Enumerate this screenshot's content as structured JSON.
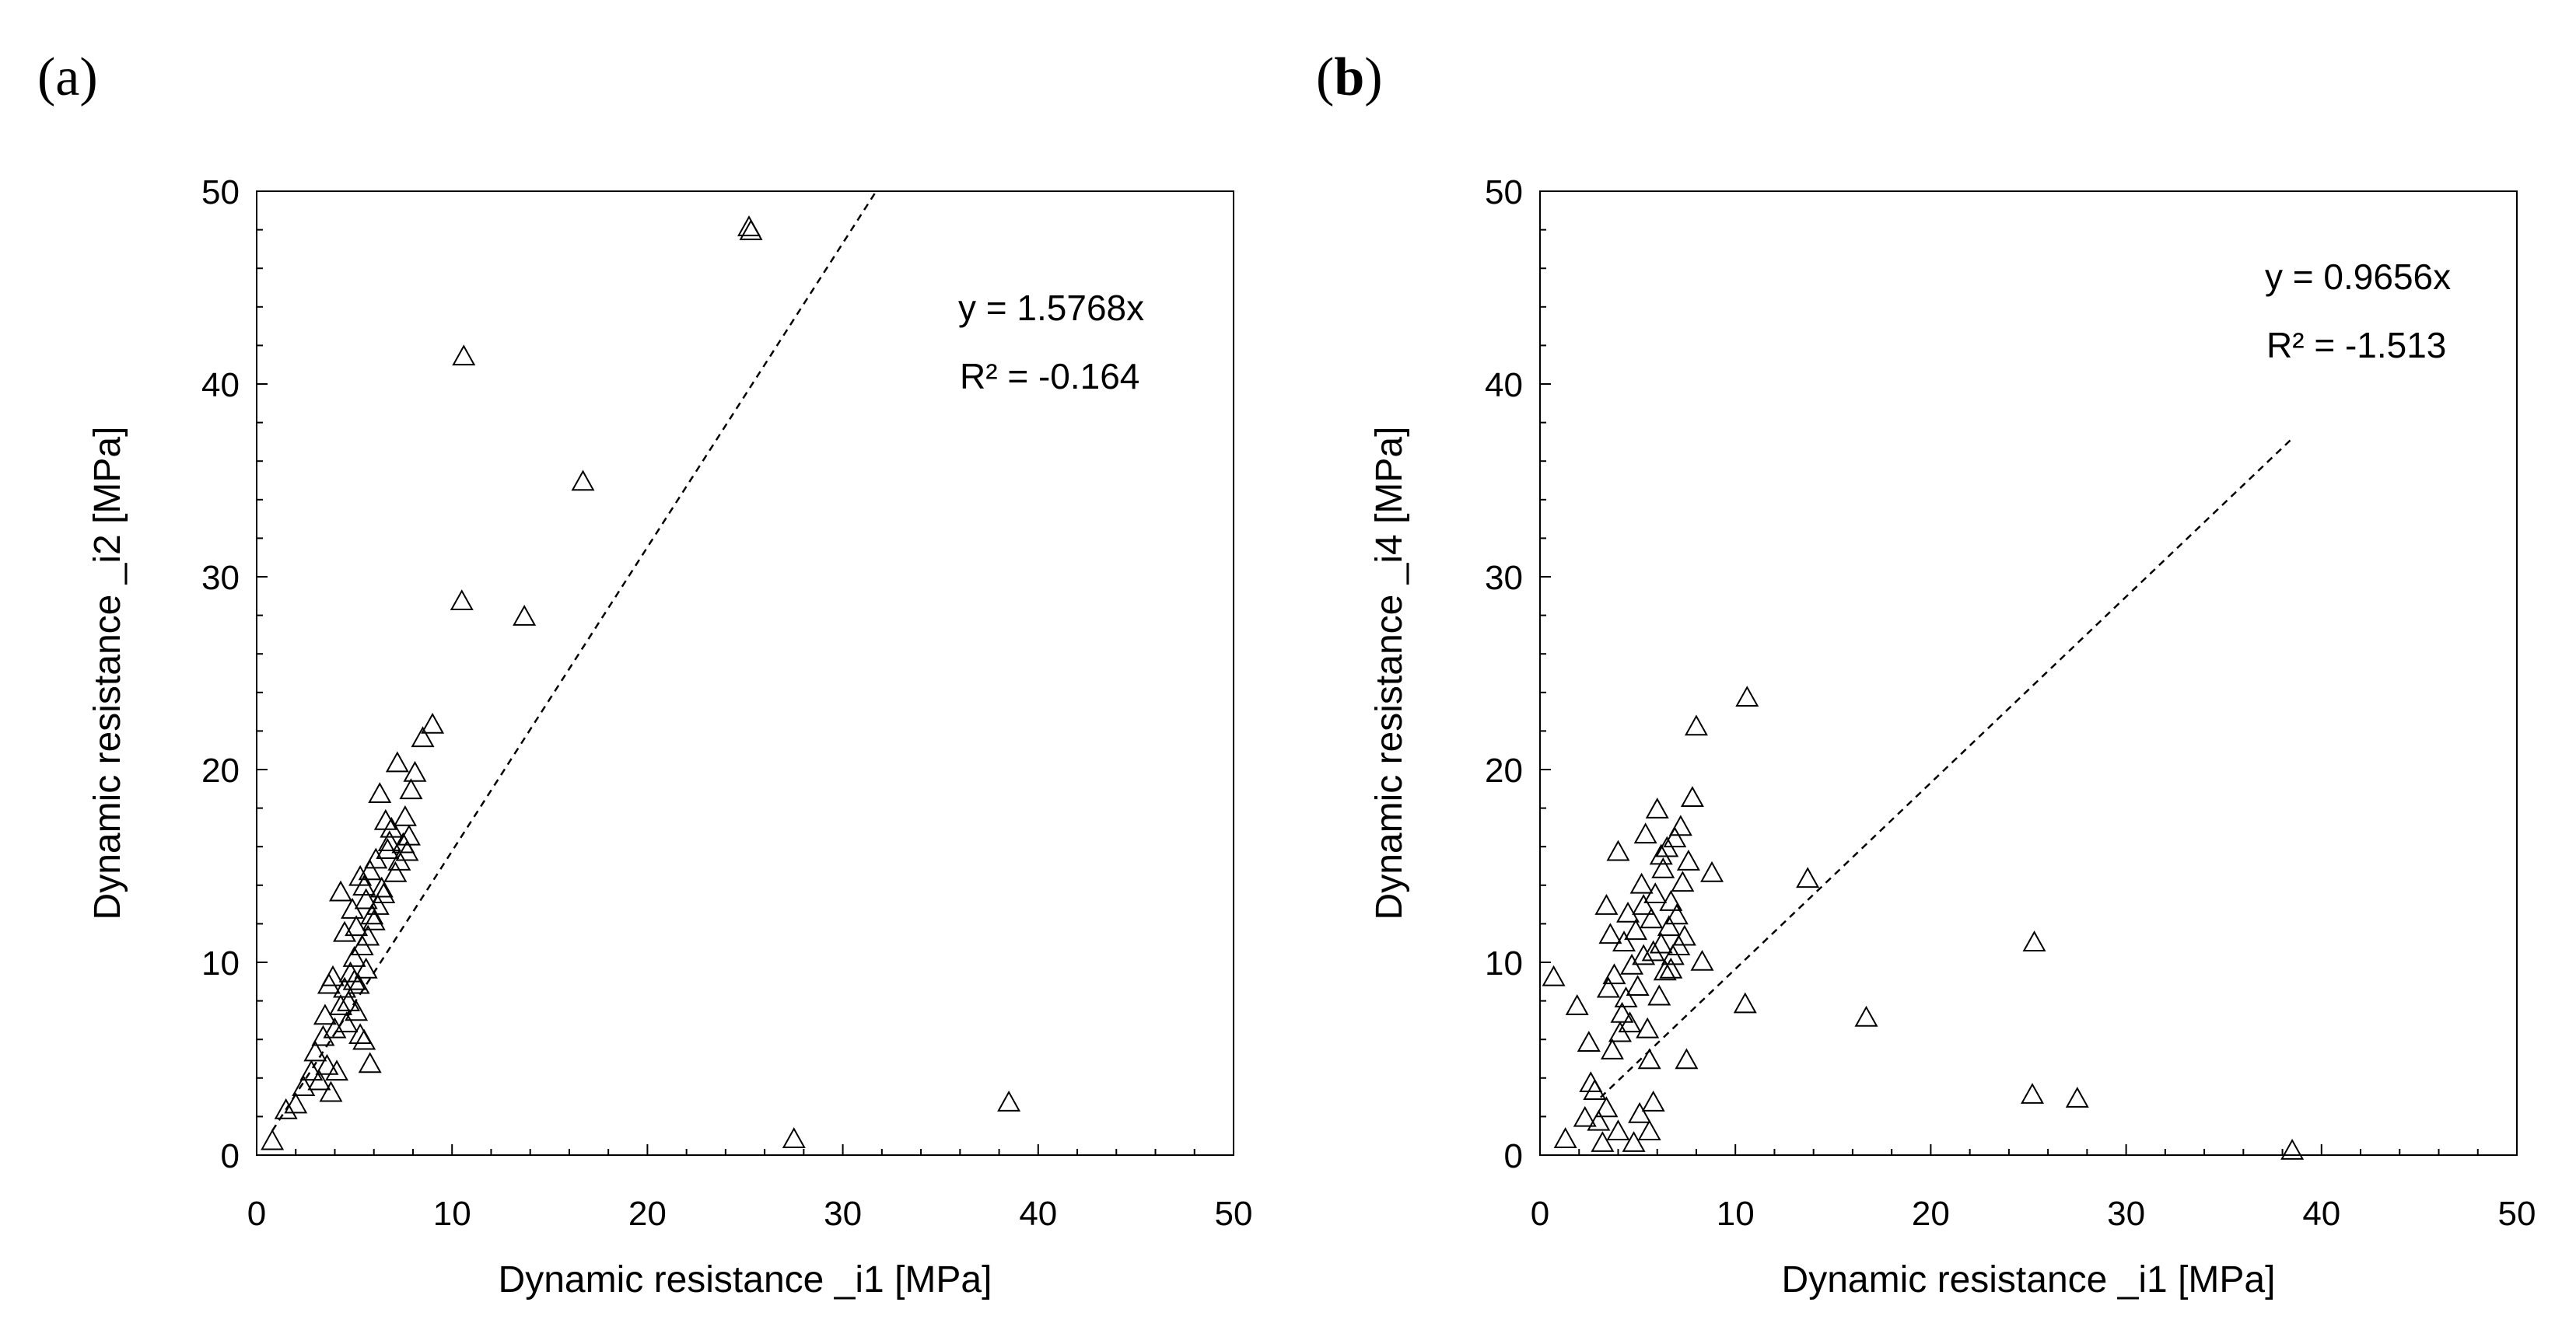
{
  "chart_data": [
    {
      "type": "scatter",
      "panel_label": "(a)",
      "xlabel": "Dynamic resistance _i1 [MPa]",
      "ylabel": "Dynamic resistance _i2 [MPa]",
      "xlim": [
        0,
        50
      ],
      "ylim": [
        0,
        50
      ],
      "xticks": [
        "0",
        "10",
        "20",
        "30",
        "40",
        "50"
      ],
      "yticks": [
        "0",
        "10",
        "20",
        "30",
        "40",
        "50"
      ],
      "marker": "open-triangle",
      "trendline": {
        "equation": "y = 1.5768x",
        "r2": "R² = -0.164",
        "slope": 1.5768,
        "x_range": [
          0.8,
          31.7
        ],
        "style": "dashed"
      },
      "points": [
        [
          0.8,
          0.7
        ],
        [
          1.5,
          2.3
        ],
        [
          2.0,
          2.6
        ],
        [
          2.4,
          3.5
        ],
        [
          2.8,
          4.3
        ],
        [
          3.0,
          5.3
        ],
        [
          3.2,
          3.8
        ],
        [
          3.4,
          6.1
        ],
        [
          3.6,
          4.6
        ],
        [
          3.8,
          3.2
        ],
        [
          3.5,
          7.2
        ],
        [
          3.7,
          8.8
        ],
        [
          4.0,
          6.5
        ],
        [
          4.1,
          4.3
        ],
        [
          4.3,
          7.7
        ],
        [
          4.5,
          8.6
        ],
        [
          4.6,
          6.8
        ],
        [
          4.8,
          9.4
        ],
        [
          5.0,
          10.2
        ],
        [
          5.1,
          7.4
        ],
        [
          5.3,
          6.2
        ],
        [
          5.5,
          5.9
        ],
        [
          5.2,
          8.8
        ],
        [
          5.4,
          10.8
        ],
        [
          5.6,
          9.6
        ],
        [
          5.7,
          11.3
        ],
        [
          5.8,
          4.7
        ],
        [
          6.0,
          12.1
        ],
        [
          4.3,
          13.6
        ],
        [
          4.9,
          12.7
        ],
        [
          5.1,
          11.8
        ],
        [
          5.3,
          14.4
        ],
        [
          5.6,
          13.2
        ],
        [
          5.8,
          14.7
        ],
        [
          6.1,
          15.3
        ],
        [
          6.2,
          12.9
        ],
        [
          6.4,
          13.8
        ],
        [
          6.3,
          18.7
        ],
        [
          6.6,
          17.3
        ],
        [
          6.7,
          15.8
        ],
        [
          6.9,
          16.9
        ],
        [
          7.1,
          14.6
        ],
        [
          7.2,
          20.3
        ],
        [
          7.3,
          15.2
        ],
        [
          7.5,
          16.1
        ],
        [
          7.6,
          17.5
        ],
        [
          7.7,
          15.7
        ],
        [
          7.8,
          16.5
        ],
        [
          7.9,
          18.9
        ],
        [
          8.1,
          19.8
        ],
        [
          8.5,
          21.6
        ],
        [
          9.0,
          22.3
        ],
        [
          10.5,
          28.7
        ],
        [
          10.6,
          41.4
        ],
        [
          13.7,
          27.9
        ],
        [
          16.7,
          34.9
        ],
        [
          25.2,
          48.1
        ],
        [
          25.3,
          47.9
        ],
        [
          27.5,
          0.8
        ],
        [
          38.5,
          2.7
        ],
        [
          4.5,
          11.5
        ],
        [
          5.0,
          9.0
        ],
        [
          3.9,
          9.2
        ],
        [
          6.5,
          13.5
        ],
        [
          5.9,
          12.4
        ],
        [
          4.7,
          7.9
        ],
        [
          5.5,
          13.9
        ],
        [
          6.8,
          16.2
        ]
      ]
    },
    {
      "type": "scatter",
      "panel_label": "(b)",
      "xlabel": "Dynamic resistance _i1 [MPa]",
      "ylabel": "Dynamic resistance _i4 [MPa]",
      "xlim": [
        0,
        50
      ],
      "ylim": [
        0,
        50
      ],
      "xticks": [
        "0",
        "10",
        "20",
        "30",
        "40",
        "50"
      ],
      "yticks": [
        "0",
        "10",
        "20",
        "30",
        "40",
        "50"
      ],
      "marker": "open-triangle",
      "trendline": {
        "equation": "y = 0.9656x",
        "r2": "R² = -1.513",
        "slope": 0.9656,
        "x_range": [
          3.1,
          38.5
        ],
        "style": "dashed"
      },
      "points": [
        [
          0.7,
          9.2
        ],
        [
          1.3,
          0.8
        ],
        [
          1.9,
          7.7
        ],
        [
          2.3,
          1.9
        ],
        [
          2.5,
          5.8
        ],
        [
          2.6,
          3.7
        ],
        [
          2.8,
          3.3
        ],
        [
          3.0,
          1.7
        ],
        [
          3.2,
          0.6
        ],
        [
          3.4,
          2.4
        ],
        [
          3.5,
          8.6
        ],
        [
          3.4,
          12.9
        ],
        [
          3.6,
          11.4
        ],
        [
          3.7,
          5.4
        ],
        [
          3.8,
          9.3
        ],
        [
          4.0,
          1.2
        ],
        [
          4.0,
          15.7
        ],
        [
          4.1,
          6.3
        ],
        [
          4.2,
          7.3
        ],
        [
          4.4,
          8.1
        ],
        [
          4.5,
          12.5
        ],
        [
          4.6,
          6.8
        ],
        [
          4.7,
          9.8
        ],
        [
          4.8,
          0.6
        ],
        [
          4.9,
          11.6
        ],
        [
          5.0,
          8.7
        ],
        [
          5.1,
          2.1
        ],
        [
          5.2,
          14.0
        ],
        [
          5.3,
          10.3
        ],
        [
          5.4,
          16.6
        ],
        [
          5.5,
          6.5
        ],
        [
          5.6,
          4.9
        ],
        [
          5.6,
          1.2
        ],
        [
          5.7,
          12.2
        ],
        [
          5.8,
          2.7
        ],
        [
          5.9,
          13.5
        ],
        [
          6.0,
          17.9
        ],
        [
          6.1,
          8.2
        ],
        [
          6.2,
          10.9
        ],
        [
          6.3,
          14.8
        ],
        [
          6.4,
          9.5
        ],
        [
          6.5,
          15.9
        ],
        [
          6.6,
          11.8
        ],
        [
          6.7,
          13.1
        ],
        [
          6.8,
          10.3
        ],
        [
          6.9,
          16.4
        ],
        [
          7.0,
          12.4
        ],
        [
          7.1,
          10.8
        ],
        [
          7.2,
          17.0
        ],
        [
          7.3,
          14.1
        ],
        [
          7.4,
          11.3
        ],
        [
          7.5,
          4.9
        ],
        [
          7.6,
          15.2
        ],
        [
          7.8,
          18.5
        ],
        [
          8.0,
          22.2
        ],
        [
          8.3,
          10.0
        ],
        [
          8.8,
          14.6
        ],
        [
          10.5,
          7.8
        ],
        [
          10.6,
          23.7
        ],
        [
          13.7,
          14.3
        ],
        [
          16.7,
          7.1
        ],
        [
          25.2,
          3.1
        ],
        [
          25.3,
          11.0
        ],
        [
          27.5,
          2.9
        ],
        [
          38.5,
          0.2
        ],
        [
          5.3,
          12.9
        ],
        [
          6.2,
          15.5
        ],
        [
          4.3,
          11.0
        ],
        [
          6.7,
          9.6
        ],
        [
          5.8,
          10.5
        ]
      ]
    }
  ]
}
